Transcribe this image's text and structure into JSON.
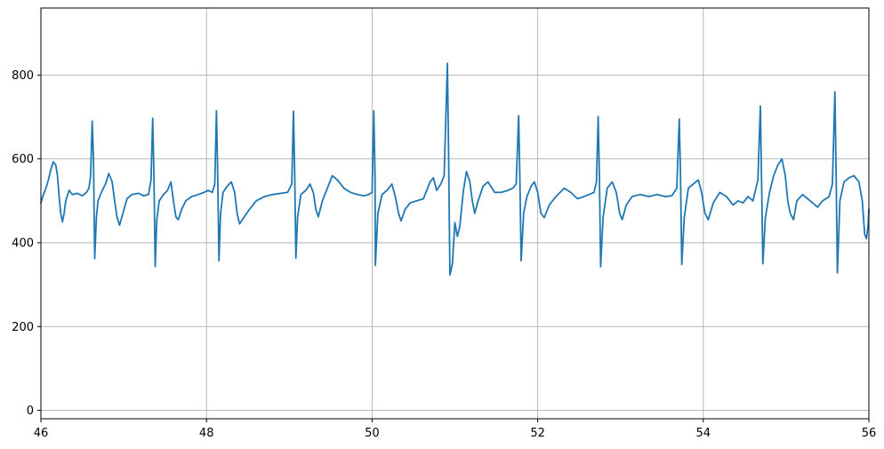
{
  "chart_data": {
    "type": "line",
    "title": "",
    "xlabel": "",
    "ylabel": "",
    "xlim": [
      46,
      56
    ],
    "ylim": [
      -20,
      960
    ],
    "grid": true,
    "x_ticks": [
      46,
      48,
      50,
      52,
      54,
      56
    ],
    "y_ticks": [
      0,
      200,
      400,
      600,
      800
    ],
    "colors": {
      "series": "#1f77b4",
      "grid": "#b0b0b0"
    },
    "series": [
      {
        "color": "#1f77b4",
        "points": [
          [
            46.0,
            495
          ],
          [
            46.03,
            515
          ],
          [
            46.06,
            530
          ],
          [
            46.09,
            550
          ],
          [
            46.12,
            575
          ],
          [
            46.15,
            593
          ],
          [
            46.18,
            585
          ],
          [
            46.2,
            560
          ],
          [
            46.22,
            510
          ],
          [
            46.24,
            470
          ],
          [
            46.26,
            450
          ],
          [
            46.28,
            470
          ],
          [
            46.3,
            500
          ],
          [
            46.34,
            525
          ],
          [
            46.38,
            515
          ],
          [
            46.44,
            518
          ],
          [
            46.5,
            512
          ],
          [
            46.55,
            520
          ],
          [
            46.58,
            530
          ],
          [
            46.6,
            560
          ],
          [
            46.62,
            690
          ],
          [
            46.635,
            600
          ],
          [
            46.65,
            362
          ],
          [
            46.67,
            460
          ],
          [
            46.69,
            500
          ],
          [
            46.73,
            520
          ],
          [
            46.78,
            540
          ],
          [
            46.82,
            565
          ],
          [
            46.86,
            545
          ],
          [
            46.89,
            500
          ],
          [
            46.92,
            460
          ],
          [
            46.95,
            442
          ],
          [
            46.99,
            470
          ],
          [
            47.04,
            505
          ],
          [
            47.1,
            515
          ],
          [
            47.18,
            518
          ],
          [
            47.24,
            512
          ],
          [
            47.3,
            515
          ],
          [
            47.33,
            550
          ],
          [
            47.35,
            697
          ],
          [
            47.365,
            560
          ],
          [
            47.38,
            343
          ],
          [
            47.4,
            455
          ],
          [
            47.43,
            500
          ],
          [
            47.48,
            515
          ],
          [
            47.53,
            525
          ],
          [
            47.57,
            545
          ],
          [
            47.6,
            500
          ],
          [
            47.63,
            462
          ],
          [
            47.66,
            455
          ],
          [
            47.7,
            480
          ],
          [
            47.75,
            500
          ],
          [
            47.82,
            510
          ],
          [
            47.9,
            515
          ],
          [
            47.97,
            520
          ],
          [
            48.02,
            525
          ],
          [
            48.07,
            520
          ],
          [
            48.1,
            540
          ],
          [
            48.12,
            715
          ],
          [
            48.135,
            560
          ],
          [
            48.15,
            357
          ],
          [
            48.17,
            470
          ],
          [
            48.2,
            520
          ],
          [
            48.25,
            535
          ],
          [
            48.3,
            545
          ],
          [
            48.34,
            520
          ],
          [
            48.37,
            470
          ],
          [
            48.4,
            445
          ],
          [
            48.45,
            460
          ],
          [
            48.52,
            480
          ],
          [
            48.6,
            500
          ],
          [
            48.7,
            510
          ],
          [
            48.8,
            515
          ],
          [
            48.9,
            518
          ],
          [
            48.98,
            520
          ],
          [
            49.03,
            540
          ],
          [
            49.05,
            714
          ],
          [
            49.065,
            560
          ],
          [
            49.08,
            363
          ],
          [
            49.1,
            460
          ],
          [
            49.14,
            515
          ],
          [
            49.2,
            525
          ],
          [
            49.25,
            540
          ],
          [
            49.29,
            520
          ],
          [
            49.32,
            480
          ],
          [
            49.35,
            462
          ],
          [
            49.4,
            500
          ],
          [
            49.46,
            530
          ],
          [
            49.52,
            560
          ],
          [
            49.58,
            550
          ],
          [
            49.66,
            530
          ],
          [
            49.74,
            520
          ],
          [
            49.82,
            515
          ],
          [
            49.9,
            512
          ],
          [
            49.96,
            515
          ],
          [
            50.0,
            520
          ],
          [
            50.02,
            715
          ],
          [
            50.035,
            560
          ],
          [
            50.04,
            346
          ],
          [
            50.07,
            470
          ],
          [
            50.12,
            515
          ],
          [
            50.18,
            525
          ],
          [
            50.24,
            540
          ],
          [
            50.28,
            510
          ],
          [
            50.32,
            470
          ],
          [
            50.35,
            452
          ],
          [
            50.4,
            480
          ],
          [
            50.46,
            495
          ],
          [
            50.54,
            500
          ],
          [
            50.62,
            505
          ],
          [
            50.7,
            545
          ],
          [
            50.74,
            555
          ],
          [
            50.78,
            525
          ],
          [
            50.83,
            540
          ],
          [
            50.87,
            560
          ],
          [
            50.91,
            828
          ],
          [
            50.925,
            600
          ],
          [
            50.94,
            323
          ],
          [
            50.97,
            350
          ],
          [
            51.0,
            448
          ],
          [
            51.03,
            415
          ],
          [
            51.06,
            440
          ],
          [
            51.1,
            520
          ],
          [
            51.14,
            570
          ],
          [
            51.18,
            545
          ],
          [
            51.21,
            500
          ],
          [
            51.24,
            470
          ],
          [
            51.28,
            500
          ],
          [
            51.34,
            535
          ],
          [
            51.4,
            545
          ],
          [
            51.48,
            520
          ],
          [
            51.56,
            520
          ],
          [
            51.64,
            525
          ],
          [
            51.7,
            530
          ],
          [
            51.74,
            540
          ],
          [
            51.77,
            703
          ],
          [
            51.785,
            550
          ],
          [
            51.8,
            357
          ],
          [
            51.83,
            470
          ],
          [
            51.87,
            510
          ],
          [
            51.92,
            535
          ],
          [
            51.96,
            545
          ],
          [
            52.0,
            520
          ],
          [
            52.04,
            470
          ],
          [
            52.08,
            460
          ],
          [
            52.14,
            490
          ],
          [
            52.22,
            510
          ],
          [
            52.32,
            530
          ],
          [
            52.4,
            520
          ],
          [
            52.48,
            505
          ],
          [
            52.56,
            510
          ],
          [
            52.62,
            515
          ],
          [
            52.68,
            520
          ],
          [
            52.71,
            545
          ],
          [
            52.73,
            701
          ],
          [
            52.745,
            560
          ],
          [
            52.76,
            343
          ],
          [
            52.79,
            460
          ],
          [
            52.84,
            530
          ],
          [
            52.9,
            545
          ],
          [
            52.95,
            520
          ],
          [
            52.99,
            470
          ],
          [
            53.02,
            455
          ],
          [
            53.07,
            490
          ],
          [
            53.14,
            510
          ],
          [
            53.24,
            515
          ],
          [
            53.34,
            510
          ],
          [
            53.44,
            515
          ],
          [
            53.54,
            510
          ],
          [
            53.62,
            512
          ],
          [
            53.68,
            530
          ],
          [
            53.71,
            695
          ],
          [
            53.725,
            560
          ],
          [
            53.74,
            348
          ],
          [
            53.77,
            460
          ],
          [
            53.82,
            530
          ],
          [
            53.88,
            540
          ],
          [
            53.94,
            550
          ],
          [
            53.98,
            520
          ],
          [
            54.02,
            470
          ],
          [
            54.06,
            455
          ],
          [
            54.12,
            495
          ],
          [
            54.2,
            520
          ],
          [
            54.28,
            510
          ],
          [
            54.36,
            490
          ],
          [
            54.42,
            500
          ],
          [
            54.48,
            495
          ],
          [
            54.54,
            510
          ],
          [
            54.6,
            500
          ],
          [
            54.66,
            550
          ],
          [
            54.69,
            726
          ],
          [
            54.705,
            540
          ],
          [
            54.72,
            350
          ],
          [
            54.75,
            460
          ],
          [
            54.8,
            520
          ],
          [
            54.85,
            560
          ],
          [
            54.9,
            585
          ],
          [
            54.95,
            600
          ],
          [
            54.99,
            560
          ],
          [
            55.02,
            500
          ],
          [
            55.05,
            470
          ],
          [
            55.09,
            455
          ],
          [
            55.13,
            500
          ],
          [
            55.2,
            515
          ],
          [
            55.26,
            505
          ],
          [
            55.32,
            495
          ],
          [
            55.38,
            485
          ],
          [
            55.44,
            500
          ],
          [
            55.52,
            510
          ],
          [
            55.56,
            540
          ],
          [
            55.59,
            760
          ],
          [
            55.605,
            560
          ],
          [
            55.62,
            328
          ],
          [
            55.65,
            500
          ],
          [
            55.7,
            545
          ],
          [
            55.76,
            555
          ],
          [
            55.82,
            560
          ],
          [
            55.88,
            545
          ],
          [
            55.92,
            500
          ],
          [
            55.95,
            420
          ],
          [
            55.97,
            410
          ],
          [
            55.99,
            440
          ],
          [
            56.0,
            480
          ]
        ]
      }
    ]
  }
}
